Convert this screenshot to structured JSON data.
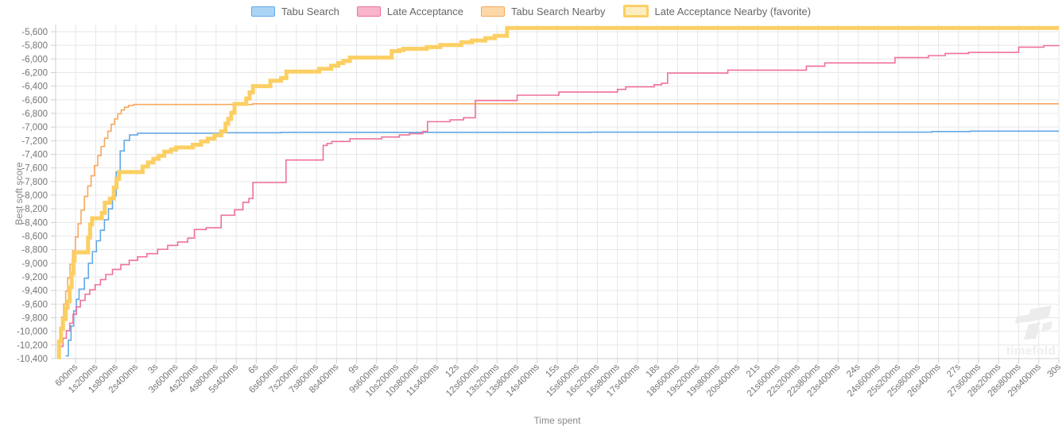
{
  "chart": {
    "background": "#ffffff",
    "grid_color": "#e7e7e7",
    "axis_color": "#cfcfcf",
    "tick_text_color": "#757575",
    "legend_text_color": "#666666"
  },
  "watermark": {
    "text": "timefold"
  },
  "chart_data": {
    "type": "line",
    "stepped": true,
    "title": "",
    "xlabel": "Time spent",
    "ylabel": "Best soft score",
    "legend_position": "top",
    "grid": true,
    "xlim_seconds": [
      0,
      30
    ],
    "ylim": [
      -10400,
      -5500
    ],
    "x_tick_interval_seconds": 0.6,
    "x_ticks": [
      "600ms",
      "1s200ms",
      "1s800ms",
      "2s400ms",
      "3s",
      "3s600ms",
      "4s200ms",
      "4s800ms",
      "5s400ms",
      "6s",
      "6s600ms",
      "7s200ms",
      "7s800ms",
      "8s400ms",
      "9s",
      "9s600ms",
      "10s200ms",
      "10s800ms",
      "11s400ms",
      "12s",
      "12s600ms",
      "13s200ms",
      "13s800ms",
      "14s400ms",
      "15s",
      "15s600ms",
      "16s200ms",
      "16s800ms",
      "17s400ms",
      "18s",
      "18s600ms",
      "19s200ms",
      "19s800ms",
      "20s400ms",
      "21s",
      "21s600ms",
      "22s200ms",
      "22s800ms",
      "23s400ms",
      "24s",
      "24s600ms",
      "25s200ms",
      "25s800ms",
      "26s400ms",
      "27s",
      "27s600ms",
      "28s200ms",
      "28s800ms",
      "29s400ms",
      "30s"
    ],
    "y_ticks": [
      "-5,600",
      "-5,800",
      "-6,000",
      "-6,200",
      "-6,400",
      "-6,600",
      "-6,800",
      "-7,000",
      "-7,200",
      "-7,400",
      "-7,600",
      "-7,800",
      "-8,000",
      "-8,200",
      "-8,400",
      "-8,600",
      "-8,800",
      "-9,000",
      "-9,200",
      "-9,400",
      "-9,600",
      "-9,800",
      "-10,000",
      "-10,200",
      "-10,400"
    ],
    "series": [
      {
        "name": "Tabu Search",
        "stroke": "#63a8e6",
        "fill": "#abd4f4",
        "favorite": false,
        "points": [
          [
            0.3,
            -10360
          ],
          [
            0.38,
            -10130
          ],
          [
            0.46,
            -9920
          ],
          [
            0.54,
            -9700
          ],
          [
            0.62,
            -9530
          ],
          [
            0.7,
            -9380
          ],
          [
            0.86,
            -9220
          ],
          [
            0.98,
            -9000
          ],
          [
            1.1,
            -8830
          ],
          [
            1.22,
            -8670
          ],
          [
            1.34,
            -8515
          ],
          [
            1.46,
            -8360
          ],
          [
            1.58,
            -8200
          ],
          [
            1.7,
            -8010
          ],
          [
            1.81,
            -7660
          ],
          [
            1.93,
            -7350
          ],
          [
            2.05,
            -7195
          ],
          [
            2.21,
            -7115
          ],
          [
            2.45,
            -7090
          ],
          [
            4.9,
            -7083
          ],
          [
            6.74,
            -7078
          ],
          [
            16.0,
            -7074
          ],
          [
            26.2,
            -7066
          ],
          [
            27.35,
            -7060
          ],
          [
            30,
            -7060
          ]
        ]
      },
      {
        "name": "Late Acceptance",
        "stroke": "#f0709b",
        "fill": "#f8b4cb",
        "favorite": false,
        "points": [
          [
            0.05,
            -10350
          ],
          [
            0.13,
            -10220
          ],
          [
            0.22,
            -10100
          ],
          [
            0.32,
            -9990
          ],
          [
            0.42,
            -9880
          ],
          [
            0.52,
            -9750
          ],
          [
            0.62,
            -9640
          ],
          [
            0.74,
            -9545
          ],
          [
            0.88,
            -9455
          ],
          [
            1.02,
            -9390
          ],
          [
            1.18,
            -9315
          ],
          [
            1.34,
            -9240
          ],
          [
            1.5,
            -9165
          ],
          [
            1.7,
            -9090
          ],
          [
            1.95,
            -9020
          ],
          [
            2.2,
            -8958
          ],
          [
            2.45,
            -8905
          ],
          [
            2.73,
            -8858
          ],
          [
            3.05,
            -8795
          ],
          [
            3.35,
            -8738
          ],
          [
            3.65,
            -8688
          ],
          [
            3.95,
            -8630
          ],
          [
            4.15,
            -8505
          ],
          [
            4.5,
            -8478
          ],
          [
            4.95,
            -8295
          ],
          [
            5.35,
            -8215
          ],
          [
            5.6,
            -8105
          ],
          [
            5.78,
            -8048
          ],
          [
            5.9,
            -7815
          ],
          [
            6.89,
            -7484
          ],
          [
            8.0,
            -7270
          ],
          [
            8.12,
            -7240
          ],
          [
            8.26,
            -7212
          ],
          [
            8.8,
            -7172
          ],
          [
            9.75,
            -7146
          ],
          [
            10.28,
            -7115
          ],
          [
            10.58,
            -7096
          ],
          [
            10.98,
            -7064
          ],
          [
            11.12,
            -6921
          ],
          [
            11.8,
            -6894
          ],
          [
            12.2,
            -6863
          ],
          [
            12.55,
            -6610
          ],
          [
            13.8,
            -6532
          ],
          [
            15.05,
            -6486
          ],
          [
            16.8,
            -6447
          ],
          [
            17.05,
            -6409
          ],
          [
            17.9,
            -6378
          ],
          [
            18.12,
            -6356
          ],
          [
            18.3,
            -6207
          ],
          [
            20.1,
            -6164
          ],
          [
            22.45,
            -6106
          ],
          [
            23.0,
            -6058
          ],
          [
            25.1,
            -5979
          ],
          [
            26.1,
            -5951
          ],
          [
            26.6,
            -5920
          ],
          [
            27.3,
            -5904
          ],
          [
            28.8,
            -5826
          ],
          [
            29.55,
            -5804
          ],
          [
            30,
            -5800
          ]
        ]
      },
      {
        "name": "Tabu Search Nearby",
        "stroke": "#f8a85e",
        "fill": "#fcd8a9",
        "favorite": false,
        "points": [
          [
            0.05,
            -10380
          ],
          [
            0.09,
            -10160
          ],
          [
            0.13,
            -9970
          ],
          [
            0.18,
            -9790
          ],
          [
            0.24,
            -9600
          ],
          [
            0.3,
            -9410
          ],
          [
            0.36,
            -9215
          ],
          [
            0.43,
            -9015
          ],
          [
            0.51,
            -8815
          ],
          [
            0.59,
            -8615
          ],
          [
            0.67,
            -8420
          ],
          [
            0.76,
            -8220
          ],
          [
            0.86,
            -8020
          ],
          [
            0.96,
            -7865
          ],
          [
            1.06,
            -7715
          ],
          [
            1.16,
            -7565
          ],
          [
            1.26,
            -7420
          ],
          [
            1.36,
            -7285
          ],
          [
            1.46,
            -7165
          ],
          [
            1.56,
            -7060
          ],
          [
            1.66,
            -6960
          ],
          [
            1.76,
            -6880
          ],
          [
            1.86,
            -6805
          ],
          [
            1.96,
            -6748
          ],
          [
            2.06,
            -6708
          ],
          [
            2.18,
            -6682
          ],
          [
            2.33,
            -6668
          ],
          [
            5.9,
            -6658
          ],
          [
            30,
            -6658
          ]
        ]
      },
      {
        "name": "Late Acceptance Nearby (favorite)",
        "stroke": "#fbcf63",
        "fill": "#fdeec0",
        "favorite": true,
        "points": [
          [
            0.05,
            -10380
          ],
          [
            0.1,
            -10150
          ],
          [
            0.16,
            -9960
          ],
          [
            0.22,
            -9820
          ],
          [
            0.3,
            -9650
          ],
          [
            0.36,
            -9560
          ],
          [
            0.42,
            -9350
          ],
          [
            0.48,
            -9150
          ],
          [
            0.53,
            -8960
          ],
          [
            0.57,
            -8840
          ],
          [
            0.97,
            -8620
          ],
          [
            1.03,
            -8430
          ],
          [
            1.09,
            -8340
          ],
          [
            1.38,
            -8260
          ],
          [
            1.47,
            -8110
          ],
          [
            1.62,
            -8050
          ],
          [
            1.74,
            -7890
          ],
          [
            1.82,
            -7760
          ],
          [
            1.9,
            -7660
          ],
          [
            2.6,
            -7580
          ],
          [
            2.76,
            -7520
          ],
          [
            2.92,
            -7465
          ],
          [
            3.08,
            -7420
          ],
          [
            3.25,
            -7360
          ],
          [
            3.45,
            -7330
          ],
          [
            3.6,
            -7300
          ],
          [
            4.1,
            -7260
          ],
          [
            4.35,
            -7210
          ],
          [
            4.55,
            -7170
          ],
          [
            4.75,
            -7120
          ],
          [
            4.95,
            -7060
          ],
          [
            5.08,
            -6950
          ],
          [
            5.16,
            -6880
          ],
          [
            5.25,
            -6790
          ],
          [
            5.35,
            -6660
          ],
          [
            5.7,
            -6580
          ],
          [
            5.8,
            -6490
          ],
          [
            5.9,
            -6400
          ],
          [
            6.42,
            -6320
          ],
          [
            6.74,
            -6280
          ],
          [
            6.9,
            -6185
          ],
          [
            7.88,
            -6145
          ],
          [
            8.24,
            -6100
          ],
          [
            8.45,
            -6060
          ],
          [
            8.6,
            -6030
          ],
          [
            8.8,
            -5980
          ],
          [
            10.05,
            -5885
          ],
          [
            10.28,
            -5870
          ],
          [
            10.4,
            -5850
          ],
          [
            11.1,
            -5825
          ],
          [
            11.5,
            -5795
          ],
          [
            12.13,
            -5755
          ],
          [
            12.45,
            -5730
          ],
          [
            12.85,
            -5695
          ],
          [
            13.13,
            -5660
          ],
          [
            13.5,
            -5545
          ],
          [
            30,
            -5545
          ]
        ]
      }
    ]
  }
}
